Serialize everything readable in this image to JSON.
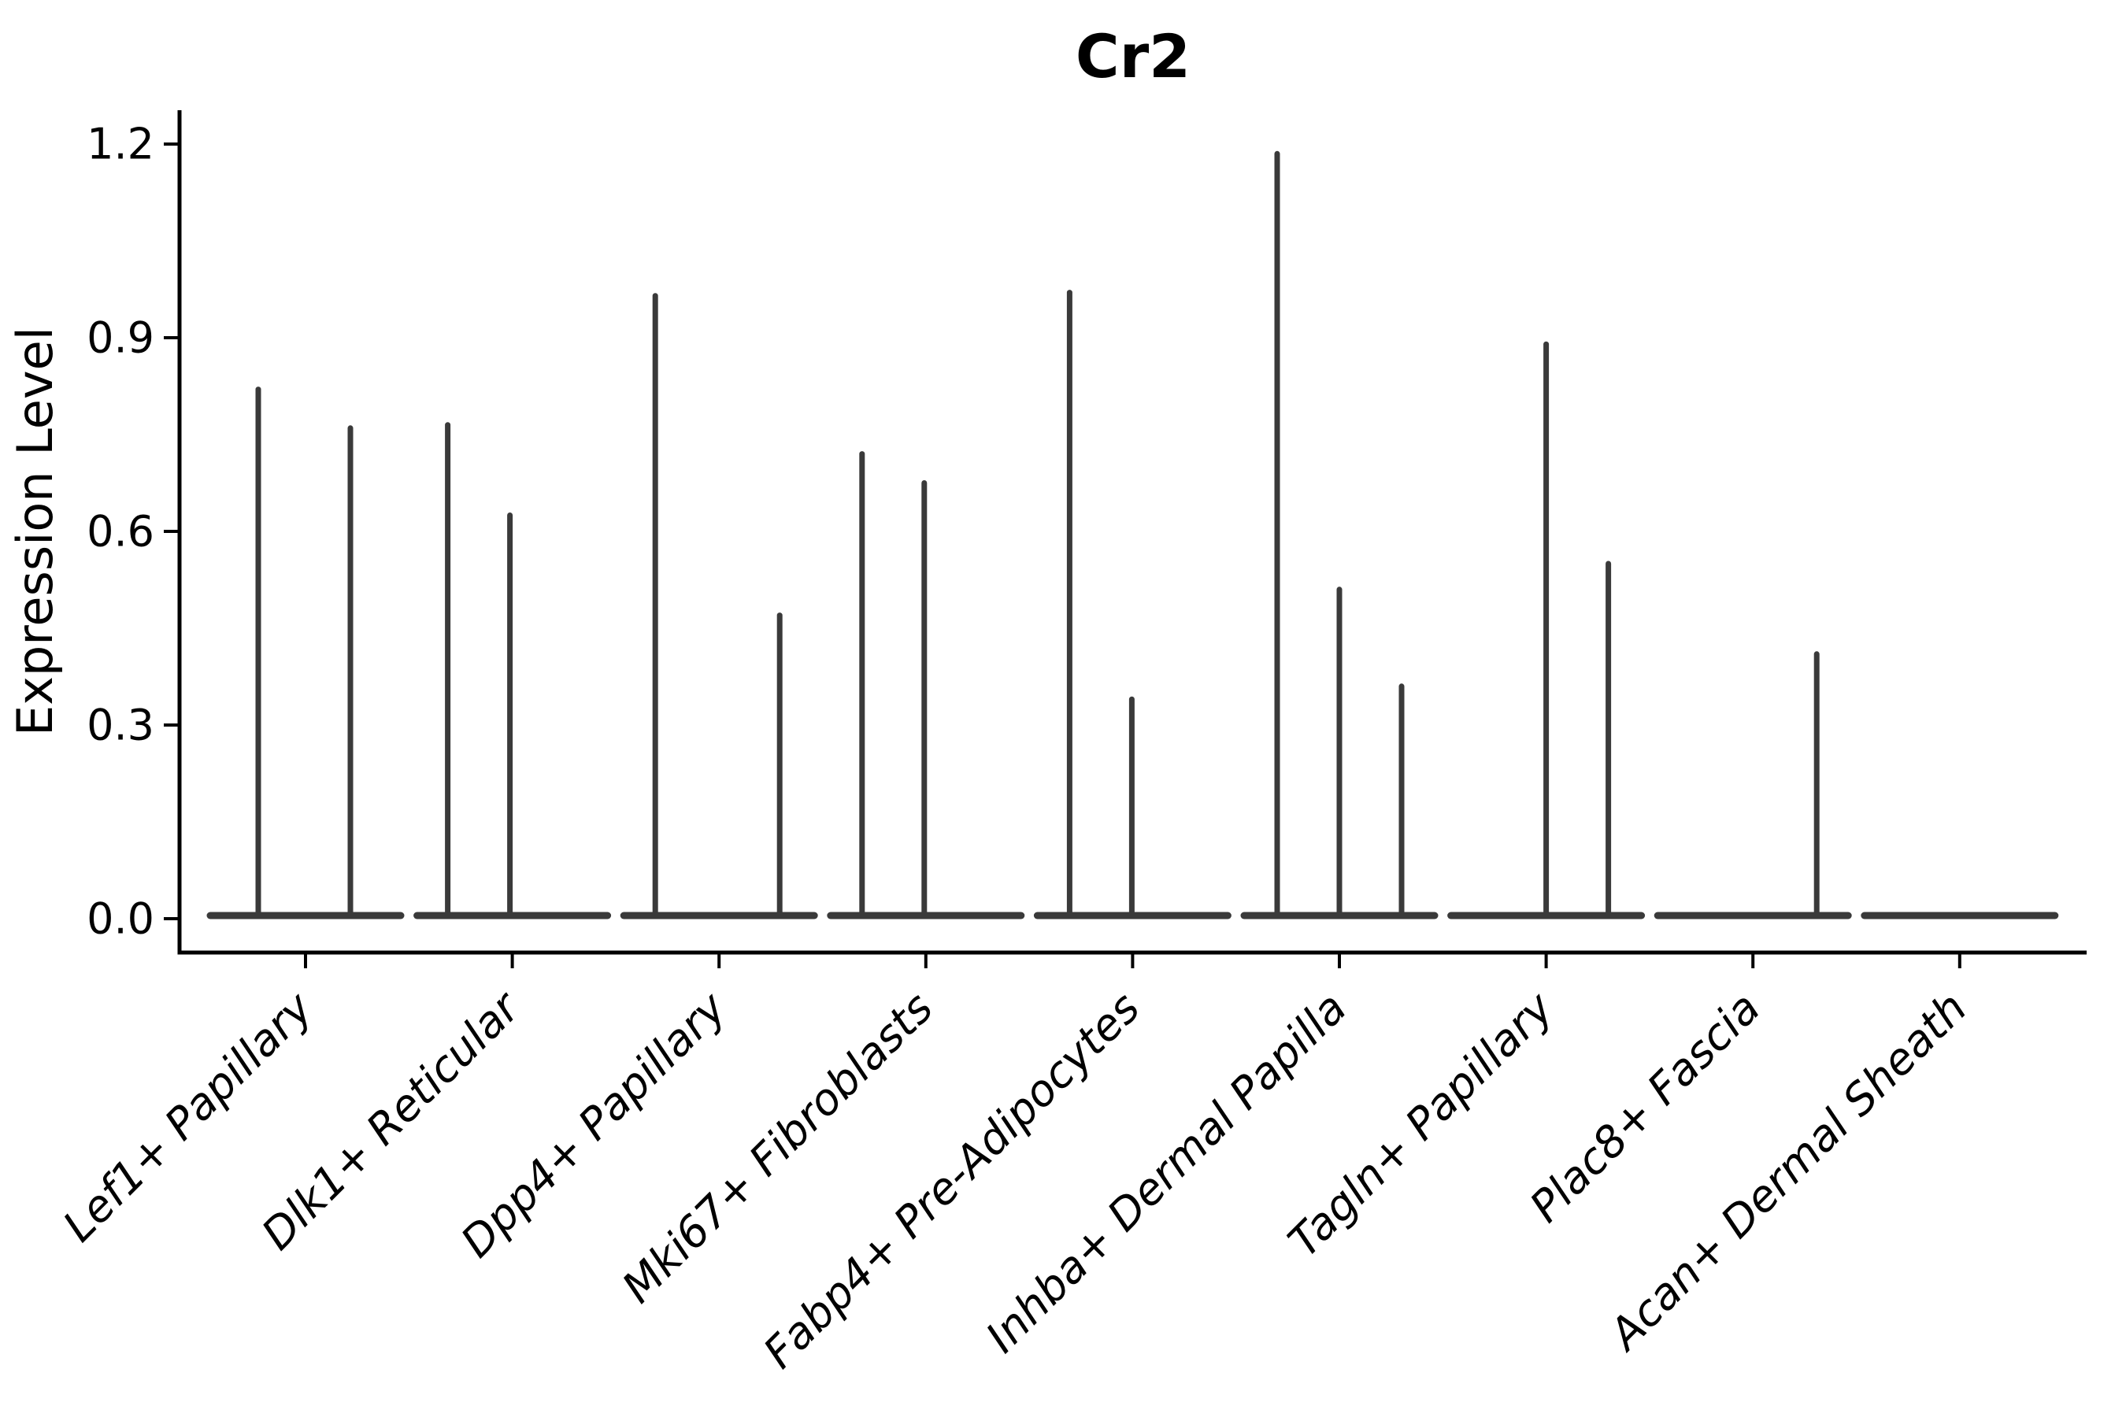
{
  "title": "Cr2",
  "colors": {
    "background": "#ffffff",
    "violin": "#3a3a3a",
    "axis": "#000000",
    "text": "#000000"
  },
  "chart_data": {
    "type": "violin",
    "title": "Cr2",
    "xlabel": "",
    "ylabel": "Expression Level",
    "ylim": [
      -0.06,
      1.25
    ],
    "yticks": [
      "0.0",
      "0.3",
      "0.6",
      "0.9",
      "1.2"
    ],
    "ytick_values": [
      0.0,
      0.3,
      0.6,
      0.9,
      1.2
    ],
    "grid": "off",
    "legend": "none",
    "description": "Sparse single-cell expression violins: each cell-type category shows a wide flat base at 0 with thin needle violins rising to the maximum expression of each sub-group.",
    "categories": [
      {
        "label": "Lef1+ Papillary",
        "spikes": [
          {
            "dx": -60,
            "value": 0.82
          },
          {
            "dx": 57,
            "value": 0.76
          }
        ]
      },
      {
        "label": "Dlk1+ Reticular",
        "spikes": [
          {
            "dx": -82,
            "value": 0.765
          },
          {
            "dx": -3,
            "value": 0.625
          }
        ]
      },
      {
        "label": "Dpp4+ Papillary",
        "spikes": [
          {
            "dx": -81,
            "value": 0.965
          },
          {
            "dx": 77,
            "value": 0.47
          }
        ]
      },
      {
        "label": "Mki67+ Fibroblasts",
        "spikes": [
          {
            "dx": -81,
            "value": 0.72
          },
          {
            "dx": -2,
            "value": 0.675
          }
        ]
      },
      {
        "label": "Fabp4+ Pre-Adipocytes",
        "spikes": [
          {
            "dx": -80,
            "value": 0.97
          },
          {
            "dx": -1,
            "value": 0.34
          }
        ]
      },
      {
        "label": "Inhba+ Dermal Papilla",
        "spikes": [
          {
            "dx": -79,
            "value": 1.185
          },
          {
            "dx": 0,
            "value": 0.51
          },
          {
            "dx": 79,
            "value": 0.36
          }
        ]
      },
      {
        "label": "Tagln+ Papillary",
        "spikes": [
          {
            "dx": 0,
            "value": 0.89
          },
          {
            "dx": 79,
            "value": 0.55
          }
        ]
      },
      {
        "label": "Plac8+ Fascia",
        "spikes": [
          {
            "dx": 81,
            "value": 0.41
          }
        ]
      },
      {
        "label": "Acan+ Dermal Sheath",
        "spikes": []
      }
    ]
  }
}
